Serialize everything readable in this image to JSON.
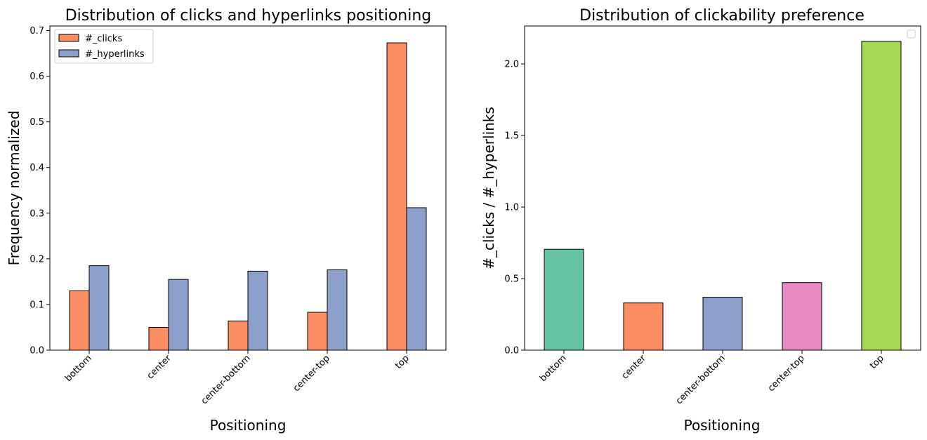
{
  "chart_data": [
    {
      "type": "bar",
      "title": "Distribution of clicks and hyperlinks positioning",
      "xlabel": "Positioning",
      "ylabel": "Frequency normalized",
      "categories": [
        "bottom",
        "center",
        "center-bottom",
        "center-top",
        "top"
      ],
      "series": [
        {
          "name": "#_clicks",
          "color": "#fc8d62",
          "values": [
            0.13,
            0.05,
            0.064,
            0.083,
            0.673
          ]
        },
        {
          "name": "#_hyperlinks",
          "color": "#8da0cb",
          "values": [
            0.185,
            0.155,
            0.173,
            0.176,
            0.312
          ]
        }
      ],
      "ylim": [
        0,
        0.71
      ],
      "yticks": [
        0.0,
        0.1,
        0.2,
        0.3,
        0.4,
        0.5,
        0.6,
        0.7
      ],
      "ytick_labels": [
        "0.0",
        "0.1",
        "0.2",
        "0.3",
        "0.4",
        "0.5",
        "0.6",
        "0.7"
      ],
      "legend": "top-left",
      "grid": false
    },
    {
      "type": "bar",
      "title": "Distribution of clickability preference",
      "xlabel": "Positioning",
      "ylabel": "#_clicks / #_hyperlinks",
      "categories": [
        "bottom",
        "center",
        "center-bottom",
        "center-top",
        "top"
      ],
      "values": [
        0.705,
        0.33,
        0.37,
        0.472,
        2.157
      ],
      "colors": [
        "#66c2a5",
        "#fc8d62",
        "#8da0cb",
        "#e78ac3",
        "#a6d854"
      ],
      "ylim": [
        0,
        2.265
      ],
      "yticks": [
        0.0,
        0.5,
        1.0,
        1.5,
        2.0
      ],
      "ytick_labels": [
        "0.0",
        "0.5",
        "1.0",
        "1.5",
        "2.0"
      ],
      "legend": "top-right (empty)",
      "grid": false
    }
  ]
}
